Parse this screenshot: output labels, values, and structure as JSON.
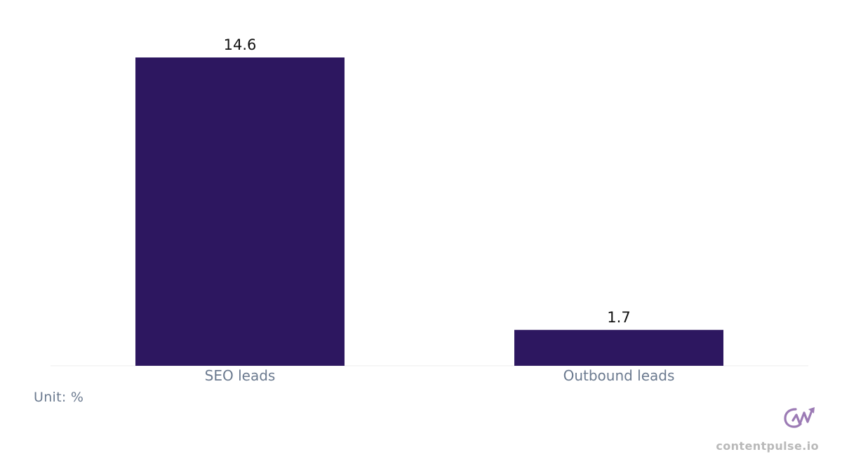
{
  "chart_data": {
    "type": "bar",
    "categories": [
      "SEO leads",
      "Outbound leads"
    ],
    "values": [
      14.6,
      1.7
    ],
    "data_labels": [
      "14.6",
      "1.7"
    ],
    "ylim": [
      0,
      14.6
    ],
    "grid": false,
    "bar_color": "#2d1760",
    "unit_label": "Unit: %"
  },
  "brand": {
    "logo_icon": "contentpulse-logo-icon",
    "logo_color": "#9c7bb5",
    "name": "contentpulse.io"
  }
}
